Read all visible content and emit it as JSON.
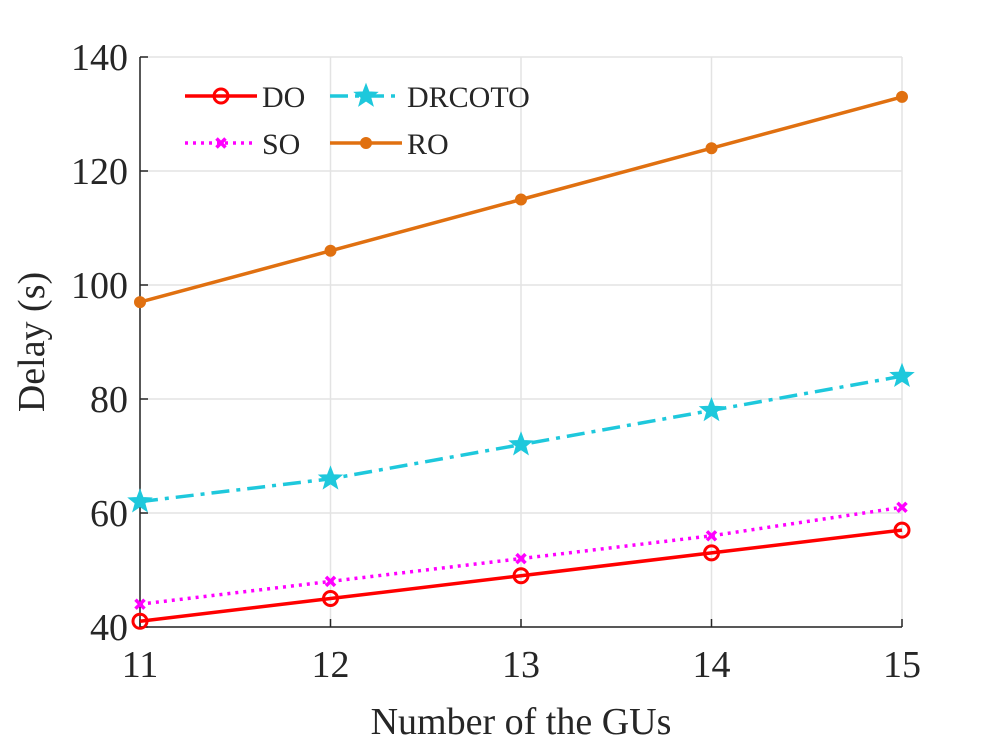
{
  "chart_data": {
    "type": "line",
    "title": "",
    "xlabel": "Number of the GUs",
    "ylabel": "Delay (s)",
    "x": [
      11,
      12,
      13,
      14,
      15
    ],
    "xlim": [
      11,
      15
    ],
    "ylim": [
      40,
      140
    ],
    "xticks": [
      "11",
      "12",
      "13",
      "14",
      "15"
    ],
    "yticks": [
      "40",
      "60",
      "80",
      "100",
      "120",
      "140"
    ],
    "grid": true,
    "legend_position": "top-left",
    "series": [
      {
        "name": "DO",
        "values": [
          41,
          45,
          49,
          53,
          57
        ],
        "color": "#ff0000",
        "line": "solid",
        "marker": "circle-open"
      },
      {
        "name": "DRCOTO",
        "values": [
          62,
          66,
          72,
          78,
          84
        ],
        "color": "#1ec8dc",
        "line": "dash-dot",
        "marker": "star"
      },
      {
        "name": "SO",
        "values": [
          44,
          48,
          52,
          56,
          61
        ],
        "color": "#ff00ff",
        "line": "dotted",
        "marker": "x"
      },
      {
        "name": "RO",
        "values": [
          97,
          106,
          115,
          124,
          133
        ],
        "color": "#e07010",
        "line": "solid",
        "marker": "dot"
      }
    ]
  }
}
